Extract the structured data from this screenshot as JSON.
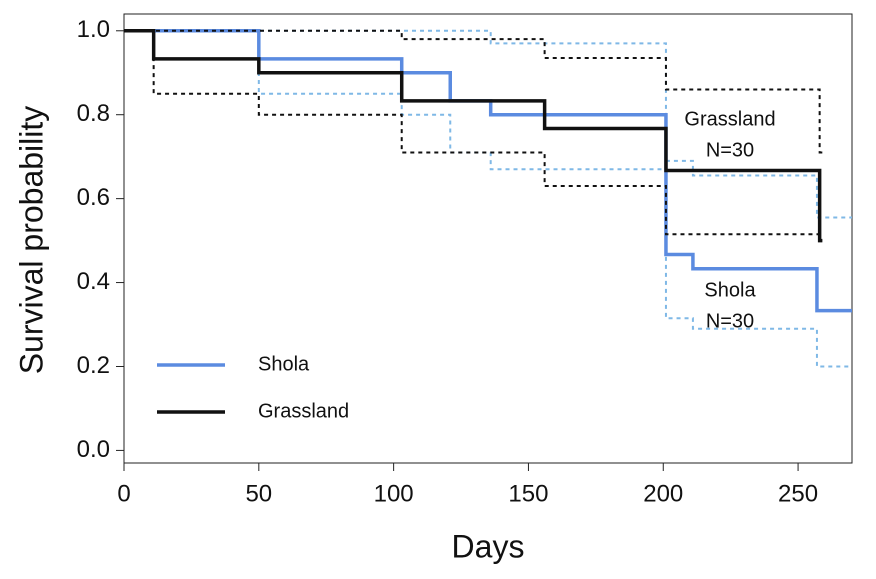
{
  "chart_data": {
    "type": "step",
    "x_label": "Days",
    "y_label": "Survival probability",
    "xlim": [
      0,
      270
    ],
    "ylim": [
      -0.03,
      1.04
    ],
    "xticks": [
      0,
      50,
      100,
      150,
      200,
      250
    ],
    "yticks": [
      {
        "value": 0,
        "label": "0.0"
      },
      0.2,
      0.4,
      0.6,
      0.8,
      {
        "value": 1,
        "label": "1.0"
      }
    ],
    "legend": "bottom-left",
    "series": [
      {
        "name": "Shola",
        "color": "#5b8be0",
        "ci_color": "#7fb8e6",
        "x": [
          0,
          50,
          103,
          121,
          136,
          201,
          211,
          257,
          270
        ],
        "values": [
          1,
          0.933,
          0.9,
          0.833,
          0.8,
          0.467,
          0.433,
          0.333,
          0.333
        ],
        "upper": [
          1,
          1,
          1,
          1,
          0.97,
          0.69,
          0.655,
          0.555,
          0.555
        ],
        "lower": [
          1,
          0.85,
          0.8,
          0.71,
          0.67,
          0.315,
          0.29,
          0.2,
          0.2
        ]
      },
      {
        "name": "Grassland",
        "color": "#111111",
        "ci_color": "#111111",
        "x": [
          0,
          11,
          50,
          103,
          156,
          201,
          258,
          259
        ],
        "values": [
          1,
          0.933,
          0.9,
          0.833,
          0.767,
          0.667,
          0.5,
          0.5
        ],
        "upper": [
          1,
          1,
          1,
          0.98,
          0.935,
          0.86,
          0.71,
          0.71
        ],
        "lower": [
          1,
          0.85,
          0.8,
          0.71,
          0.63,
          0.515,
          0.5,
          0.5
        ]
      }
    ],
    "annotations": [
      [
        "Grassland",
        "N=30"
      ],
      [
        "Shola",
        "N=30"
      ]
    ]
  }
}
